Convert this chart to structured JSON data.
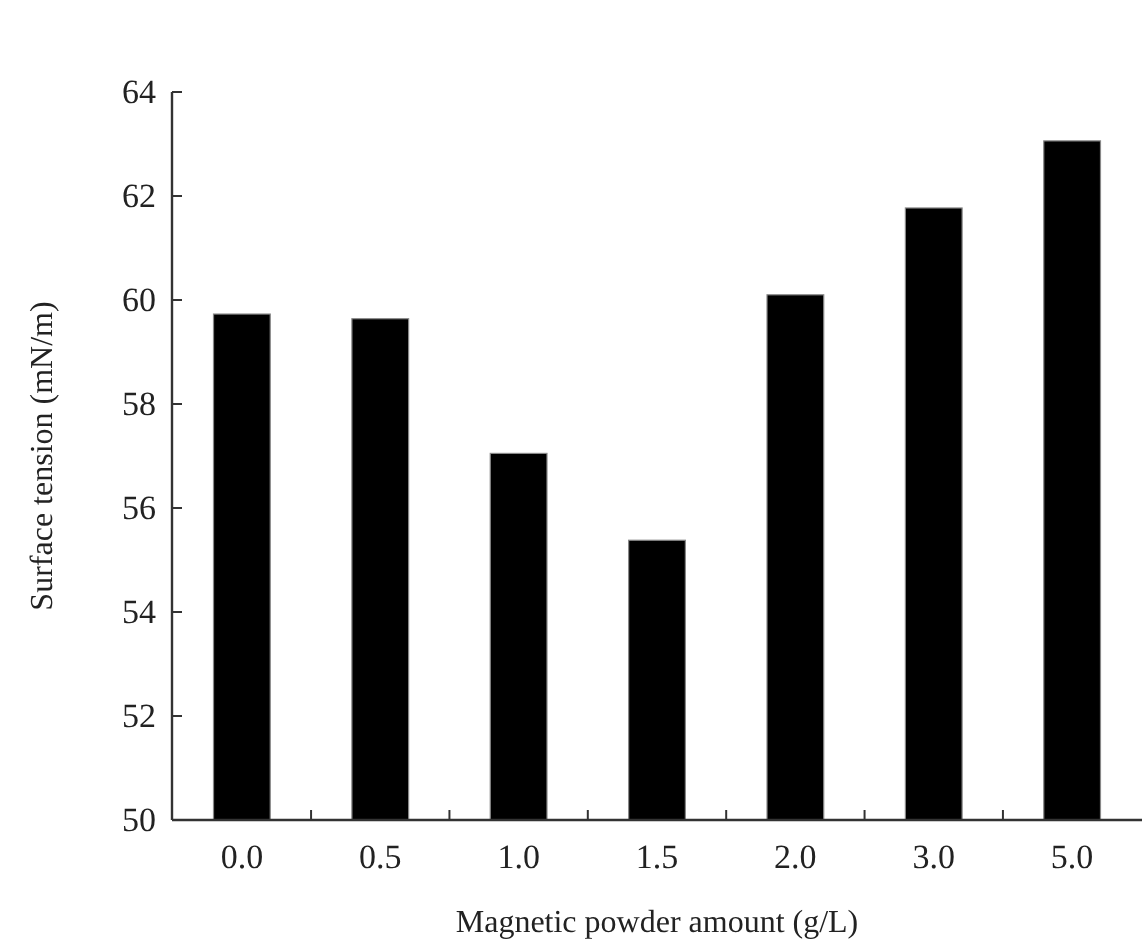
{
  "chart_data": {
    "type": "bar",
    "xlabel": "Magnetic powder amount (g/L)",
    "ylabel": "Surface tension (mN/m)",
    "categories": [
      "0.0",
      "0.5",
      "1.0",
      "1.5",
      "2.0",
      "3.0",
      "5.0"
    ],
    "values": [
      59.73,
      59.64,
      57.05,
      55.38,
      60.1,
      61.77,
      63.06
    ],
    "color": "#000000",
    "ylim": [
      50,
      64
    ],
    "yticks": [
      50,
      52,
      54,
      56,
      58,
      60,
      62,
      64
    ],
    "grid": false
  }
}
